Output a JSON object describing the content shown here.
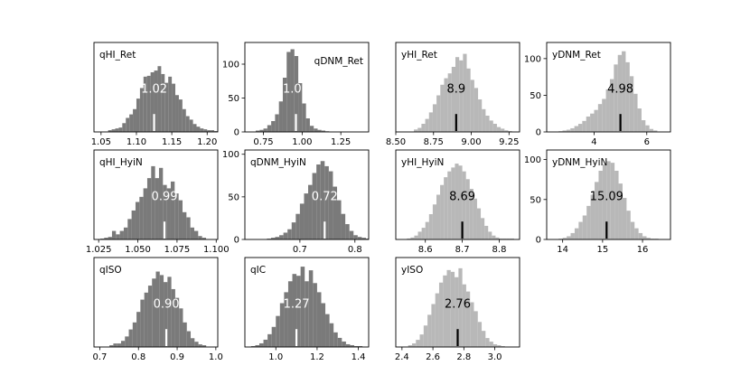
{
  "figure": {
    "background": "#ffffff",
    "dark_color": "#7a7a7a",
    "light_color": "#b8b8b8",
    "dark_marker_color": "#ffffff",
    "light_marker_color": "#000000"
  },
  "chart_data": [
    {
      "type": "bar",
      "subtype": "histogram",
      "label": "qHI_Ret",
      "value_text": "1.02",
      "color": "dark",
      "marker_x": 1.125,
      "xlim": [
        1.04,
        1.215
      ],
      "ylim": [
        0,
        102
      ],
      "xticks": [
        1.05,
        1.1,
        1.15,
        1.2
      ],
      "xtick_labels": [
        "1.05",
        "1.10",
        "1.15",
        "1.20"
      ],
      "yticks": [],
      "ytick_labels": [],
      "x_start": 1.06,
      "bin_width": 0.005,
      "values": [
        2,
        3,
        4,
        5,
        10,
        16,
        20,
        26,
        38,
        50,
        63,
        64,
        68,
        70,
        75,
        66,
        56,
        63,
        55,
        42,
        37,
        26,
        18,
        14,
        9,
        6,
        4,
        3,
        2,
        2,
        1,
        1
      ]
    },
    {
      "type": "bar",
      "subtype": "histogram",
      "label": "qDNM_Ret",
      "value_text": "1.08",
      "color": "dark",
      "marker_x": 0.96,
      "xlim": [
        0.63,
        1.43
      ],
      "ylim": [
        0,
        132
      ],
      "xticks": [
        0.75,
        1.0,
        1.25
      ],
      "xtick_labels": [
        "0.75",
        "1.00",
        "1.25"
      ],
      "yticks": [
        0,
        50,
        100
      ],
      "ytick_labels": [
        "0",
        "50",
        "100"
      ],
      "x_start": 0.7,
      "bin_width": 0.025,
      "values": [
        2,
        3,
        5,
        10,
        16,
        26,
        45,
        80,
        118,
        122,
        112,
        72,
        42,
        20,
        9,
        5,
        3,
        2,
        1
      ]
    },
    {
      "type": "bar",
      "subtype": "histogram",
      "label": "yHI_Ret",
      "value_text": "8.9",
      "color": "light",
      "marker_x": 8.9,
      "xlim": [
        8.5,
        9.32
      ],
      "ylim": [
        0,
        110
      ],
      "xticks": [
        8.5,
        8.75,
        9.0,
        9.25
      ],
      "xtick_labels": [
        "8.50",
        "8.75",
        "9.00",
        "9.25"
      ],
      "yticks": [],
      "ytick_labels": [],
      "x_start": 8.62,
      "bin_width": 0.025,
      "values": [
        3,
        5,
        10,
        16,
        24,
        34,
        45,
        58,
        66,
        72,
        80,
        92,
        88,
        96,
        78,
        64,
        54,
        40,
        28,
        20,
        14,
        10,
        6,
        4,
        2,
        1
      ]
    },
    {
      "type": "bar",
      "subtype": "histogram",
      "label": "yDNM_Ret",
      "value_text": "4.98",
      "color": "light",
      "marker_x": 5.0,
      "xlim": [
        2.2,
        6.9
      ],
      "ylim": [
        0,
        122
      ],
      "xticks": [
        4,
        6
      ],
      "xtick_labels": [
        "4",
        "6"
      ],
      "yticks": [
        0,
        50,
        100
      ],
      "ytick_labels": [
        "0",
        "50",
        "100"
      ],
      "x_start": 2.65,
      "bin_width": 0.15,
      "values": [
        1,
        2,
        3,
        5,
        8,
        11,
        15,
        21,
        25,
        30,
        38,
        45,
        58,
        72,
        92,
        105,
        110,
        95,
        76,
        52,
        32,
        16,
        9,
        4,
        2
      ]
    },
    {
      "type": "bar",
      "subtype": "histogram",
      "label": "qHI_HyiN",
      "value_text": "0.99",
      "color": "dark",
      "marker_x": 1.067,
      "xlim": [
        1.022,
        1.101
      ],
      "ylim": [
        0,
        105
      ],
      "xticks": [
        1.025,
        1.05,
        1.075,
        1.1
      ],
      "xtick_labels": [
        "1.025",
        "1.050",
        "1.075",
        "1.100"
      ],
      "yticks": [],
      "ytick_labels": [],
      "x_start": 1.026,
      "bin_width": 0.0025,
      "values": [
        1,
        2,
        3,
        10,
        6,
        10,
        14,
        24,
        34,
        44,
        50,
        60,
        72,
        86,
        72,
        84,
        64,
        60,
        68,
        54,
        46,
        32,
        26,
        14,
        10,
        4,
        2
      ]
    },
    {
      "type": "bar",
      "subtype": "histogram",
      "label": "qDNM_HyiN",
      "value_text": "0.72",
      "color": "dark",
      "marker_x": 0.745,
      "xlim": [
        0.6,
        0.825
      ],
      "ylim": [
        0,
        105
      ],
      "xticks": [
        0.7,
        0.8
      ],
      "xtick_labels": [
        "0.7",
        "0.8"
      ],
      "yticks": [
        0,
        50,
        100
      ],
      "ytick_labels": [
        "0",
        "50",
        "100"
      ],
      "x_start": 0.64,
      "bin_width": 0.0075,
      "values": [
        1,
        2,
        3,
        5,
        8,
        12,
        20,
        30,
        42,
        54,
        64,
        78,
        88,
        92,
        86,
        80,
        62,
        46,
        30,
        18,
        10,
        5,
        3,
        2,
        1
      ]
    },
    {
      "type": "bar",
      "subtype": "histogram",
      "label": "yHI_HyiN",
      "value_text": "8.69",
      "color": "light",
      "marker_x": 8.7,
      "xlim": [
        8.52,
        8.855
      ],
      "ylim": [
        0,
        92
      ],
      "xticks": [
        8.6,
        8.7,
        8.8
      ],
      "xtick_labels": [
        "8.6",
        "8.7",
        "8.8"
      ],
      "yticks": [],
      "ytick_labels": [],
      "x_start": 8.55,
      "bin_width": 0.01,
      "values": [
        1,
        2,
        4,
        8,
        12,
        18,
        26,
        36,
        46,
        56,
        64,
        70,
        74,
        78,
        76,
        70,
        62,
        52,
        42,
        32,
        22,
        14,
        8,
        4,
        2,
        1,
        1,
        1,
        1
      ]
    },
    {
      "type": "bar",
      "subtype": "histogram",
      "label": "yDNM_HyiN",
      "value_text": "15.09",
      "color": "light",
      "marker_x": 15.1,
      "xlim": [
        13.6,
        16.7
      ],
      "ylim": [
        0,
        112
      ],
      "xticks": [
        14,
        15,
        16
      ],
      "xtick_labels": [
        "14",
        "15",
        "16"
      ],
      "yticks": [
        0,
        50,
        100
      ],
      "ytick_labels": [
        "0",
        "50",
        "100"
      ],
      "x_start": 13.9,
      "bin_width": 0.1,
      "values": [
        1,
        2,
        4,
        8,
        14,
        22,
        30,
        42,
        56,
        72,
        86,
        94,
        98,
        96,
        86,
        70,
        52,
        36,
        22,
        14,
        8,
        4,
        2,
        1,
        1
      ]
    },
    {
      "type": "bar",
      "subtype": "histogram",
      "label": "qISO",
      "value_text": "0.90",
      "color": "dark",
      "marker_x": 0.872,
      "xlim": [
        0.685,
        1.005
      ],
      "ylim": [
        0,
        102
      ],
      "xticks": [
        0.7,
        0.8,
        0.9,
        1.0
      ],
      "xtick_labels": [
        "0.7",
        "0.8",
        "0.9",
        "1.0"
      ],
      "yticks": [],
      "ytick_labels": [],
      "x_start": 0.725,
      "bin_width": 0.01,
      "values": [
        2,
        4,
        4,
        7,
        12,
        20,
        28,
        40,
        54,
        62,
        70,
        78,
        86,
        82,
        74,
        80,
        66,
        56,
        44,
        28,
        18,
        10,
        6,
        3,
        2
      ]
    },
    {
      "type": "bar",
      "subtype": "histogram",
      "label": "qIC",
      "value_text": "1.27",
      "color": "dark",
      "marker_x": 1.1,
      "xlim": [
        0.85,
        1.45
      ],
      "ylim": [
        0,
        98
      ],
      "xticks": [
        1.0,
        1.2,
        1.4
      ],
      "xtick_labels": [
        "1.0",
        "1.2",
        "1.4"
      ],
      "yticks": [],
      "ytick_labels": [],
      "x_start": 0.88,
      "bin_width": 0.02,
      "values": [
        1,
        2,
        4,
        8,
        14,
        22,
        34,
        48,
        60,
        72,
        80,
        78,
        88,
        72,
        84,
        70,
        60,
        48,
        36,
        26,
        16,
        10,
        6,
        3,
        2,
        1,
        1
      ]
    },
    {
      "type": "bar",
      "subtype": "histogram",
      "label": "yISO",
      "value_text": "2.76",
      "color": "light",
      "marker_x": 2.76,
      "xlim": [
        2.36,
        3.16
      ],
      "ylim": [
        0,
        100
      ],
      "xticks": [
        2.4,
        2.6,
        2.8,
        3.0
      ],
      "xtick_labels": [
        "2.4",
        "2.6",
        "2.8",
        "3.0"
      ],
      "yticks": [],
      "ytick_labels": [],
      "x_start": 2.44,
      "bin_width": 0.025,
      "values": [
        2,
        4,
        8,
        14,
        24,
        36,
        48,
        60,
        72,
        80,
        86,
        84,
        78,
        88,
        70,
        62,
        50,
        40,
        28,
        18,
        10,
        6,
        3,
        2,
        1
      ]
    }
  ]
}
